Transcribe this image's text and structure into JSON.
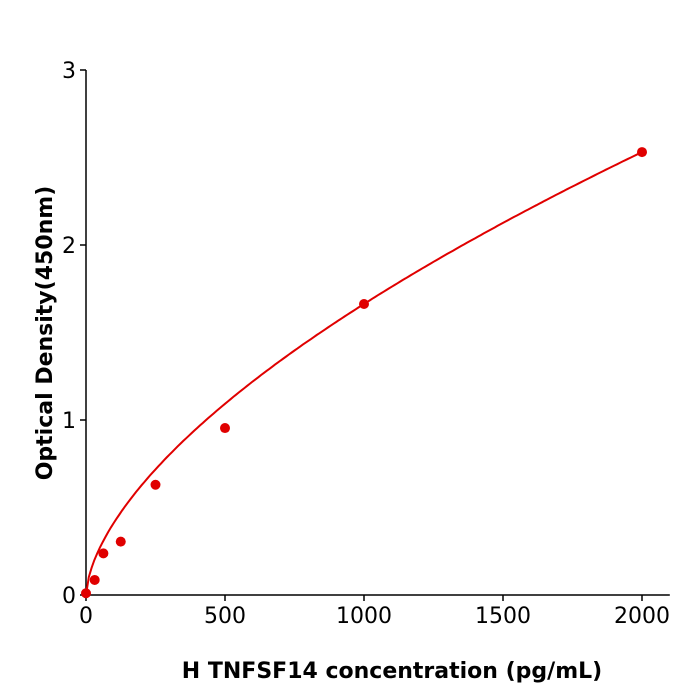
{
  "chart_data": {
    "type": "scatter",
    "title": "",
    "xlabel": "H  TNFSF14 concentration (pg/mL)",
    "ylabel": "Optical Density(450nm)",
    "xlim": [
      0,
      2100
    ],
    "ylim": [
      0,
      3
    ],
    "xticks": [
      0,
      500,
      1000,
      1500,
      2000
    ],
    "yticks": [
      0,
      1,
      2,
      3
    ],
    "grid": false,
    "legend": "none",
    "series": [
      {
        "x": [
          0,
          31.25,
          62.5,
          125,
          250,
          500,
          1000,
          2000
        ],
        "y": [
          0.01,
          0.086,
          0.238,
          0.305,
          0.63,
          0.954,
          1.663,
          2.531
        ],
        "color": "#e00000",
        "fit_curve": true
      }
    ]
  }
}
